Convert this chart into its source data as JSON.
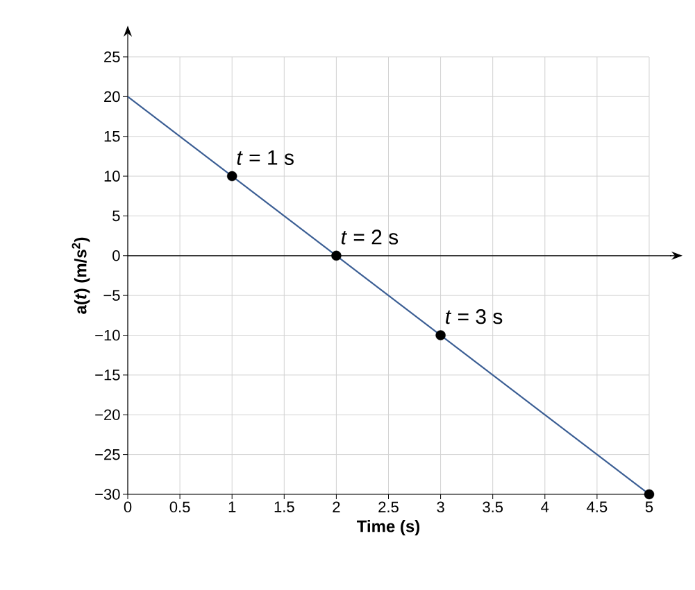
{
  "chart_data": {
    "type": "line",
    "xlabel": "Time (s)",
    "ylabel": "a(*t*) (m/s$^{2}$)",
    "xlim": [
      0,
      5
    ],
    "ylim": [
      -30,
      25
    ],
    "xticks": [
      0,
      0.5,
      1,
      1.5,
      2,
      2.5,
      3,
      3.5,
      4,
      4.5,
      5
    ],
    "yticks": [
      {
        "value": -30,
        "label": "−30"
      },
      {
        "value": -25,
        "label": "−25"
      },
      {
        "value": -20,
        "label": "−20"
      },
      {
        "value": -15,
        "label": "−15"
      },
      {
        "value": -10,
        "label": "−10"
      },
      {
        "value": -5,
        "label": "−5"
      },
      0,
      5,
      10,
      15,
      20,
      25
    ],
    "grid": true,
    "series": [
      {
        "x": [
          0,
          5
        ],
        "values": [
          20,
          -30
        ],
        "color": "#3b5e94"
      },
      {
        "type": "scatter",
        "x": [
          1,
          2,
          3,
          5
        ],
        "values": [
          10,
          0,
          -10,
          -30
        ],
        "color": "#000000",
        "marker": "circle"
      }
    ],
    "annotations": [
      {
        "text": "*t* = 1 s",
        "x": 1,
        "y": 10
      },
      {
        "text": "*t* = 2 s",
        "x": 2,
        "y": 0
      },
      {
        "text": "*t* = 3 s",
        "x": 3,
        "y": -10
      }
    ]
  }
}
